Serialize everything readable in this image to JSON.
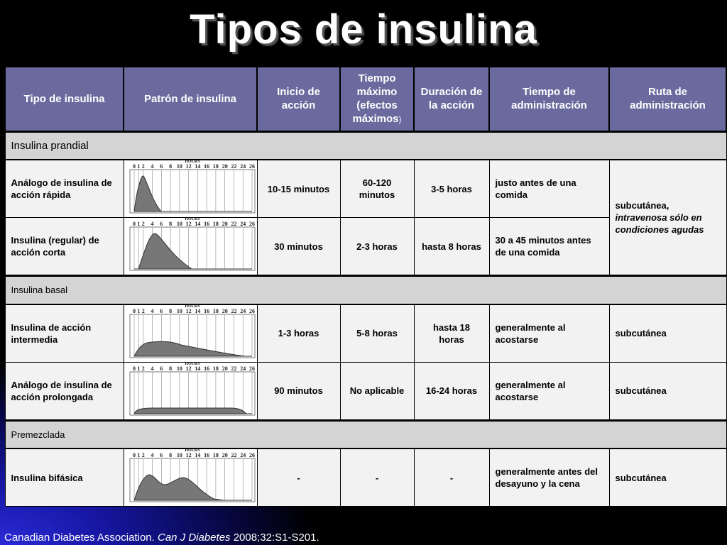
{
  "title": "Tipos de insulina",
  "headers": {
    "tipo": "Tipo de insulina",
    "patron": "Patrón de insulina",
    "inicio": "Inicio de acción",
    "tiempo_maximo": "Tiempo máximo (efectos máximos",
    "tiempo_maximo_paren": ")",
    "duracion": "Duración de la acción",
    "tiempo_admin": "Tiempo de administración",
    "ruta": "Ruta de administración"
  },
  "graph_axis": {
    "label": "HOURS",
    "ticks": [
      "0",
      "1",
      "2",
      "4",
      "6",
      "8",
      "10",
      "12",
      "14",
      "16",
      "18",
      "20",
      "22",
      "24",
      "26"
    ]
  },
  "sections": {
    "prandial": "Insulina prandial",
    "basal": "Insulina basal",
    "premezclada": "Premezclada"
  },
  "rows": [
    {
      "tipo": "Análogo de insulina de acción rápida",
      "inicio": "10-15 minutos",
      "maximo": "60-120 minutos",
      "duracion": "3-5 horas",
      "admin": "justo antes de una comida"
    },
    {
      "tipo": "Insulina  (regular) de acción corta",
      "inicio": "30 minutos",
      "maximo": "2-3 horas",
      "duracion": "hasta 8 horas",
      "admin": "30 a 45 minutos antes de una comida"
    },
    {
      "tipo": "Insulina de acción intermedia",
      "inicio": "1-3 horas",
      "maximo": "5-8 horas",
      "duracion": "hasta 18 horas",
      "admin": "generalmente al acostarse",
      "ruta": "subcutánea"
    },
    {
      "tipo": "Análogo de insulina de acción prolongada",
      "inicio": "90 minutos",
      "maximo": "No aplicable",
      "duracion": "16-24 horas",
      "admin": "generalmente al acostarse",
      "ruta": "subcutánea"
    },
    {
      "tipo": "Insulina bifásica",
      "inicio": "-",
      "maximo": "-",
      "duracion": "-",
      "admin": "generalmente antes del desayuno y la cena",
      "ruta": "subcutánea"
    }
  ],
  "prandial_ruta": {
    "line1": "subcutánea,",
    "line2": "intravenosa sólo en condiciones agudas"
  },
  "footer": {
    "pre": "Canadian Diabetes Association. ",
    "journal": "Can J Diabetes",
    "post": " 2008;32:S1-S201."
  }
}
